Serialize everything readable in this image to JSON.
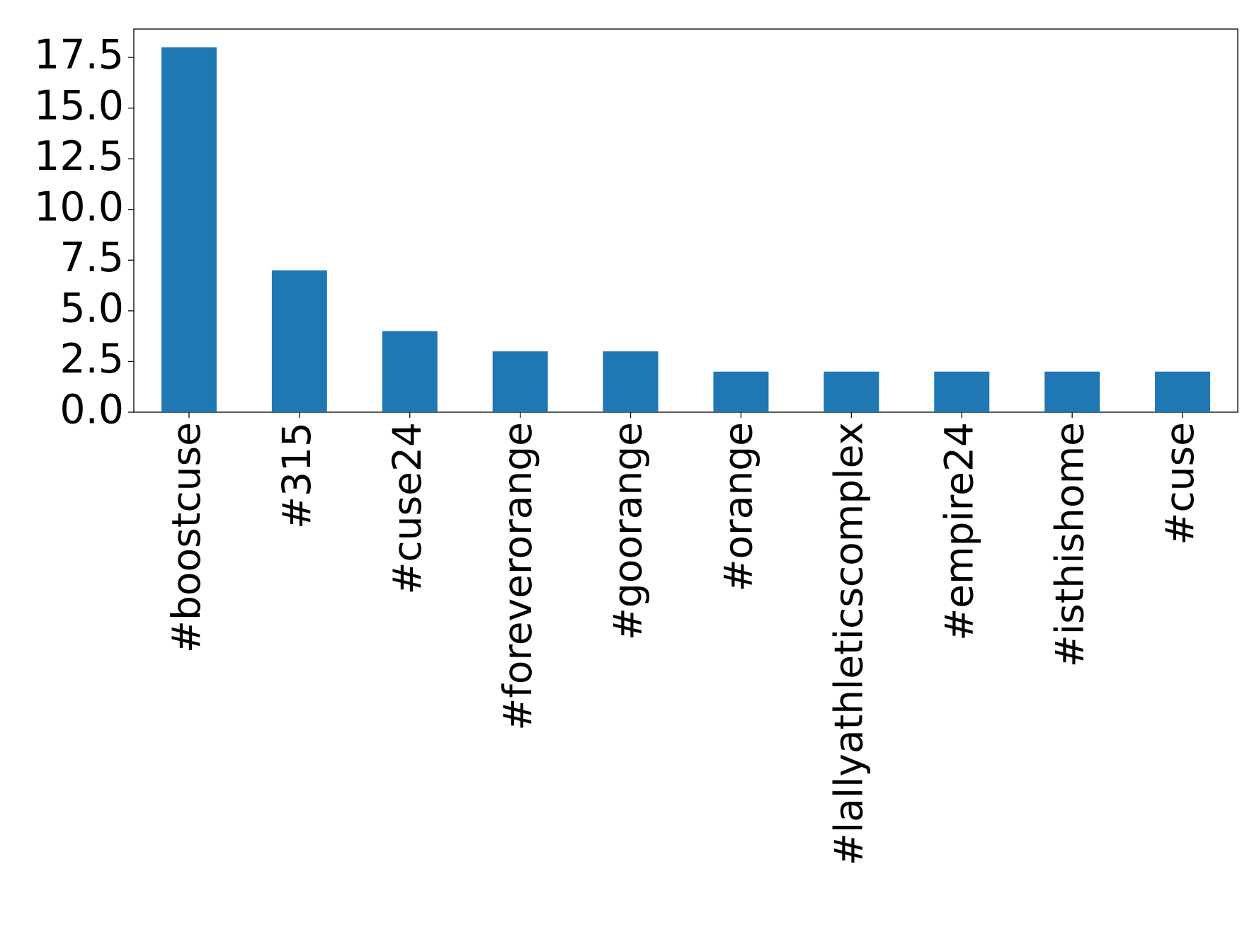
{
  "chart_data": {
    "type": "bar",
    "categories": [
      "#boostcuse",
      "#315",
      "#cuse24",
      "#foreverorange",
      "#goorange",
      "#orange",
      "#lallyathleticscomplex",
      "#empire24",
      "#isthishome",
      "#cuse"
    ],
    "values": [
      18,
      7,
      4,
      3,
      3,
      2,
      2,
      2,
      2,
      2
    ],
    "color": "#1f77b4",
    "ylim": [
      0,
      18.9
    ],
    "yticks": [
      {
        "value": 0,
        "label": "0.0"
      },
      2.5,
      {
        "value": 5,
        "label": "5.0"
      },
      7.5,
      {
        "value": 10,
        "label": "10.0"
      },
      12.5,
      {
        "value": 15,
        "label": "15.0"
      },
      17.5
    ],
    "grid": false
  }
}
